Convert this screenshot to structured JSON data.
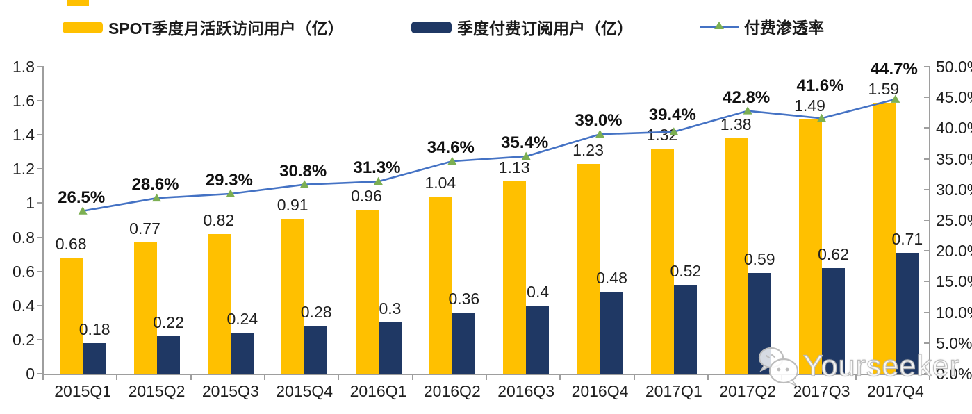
{
  "legend": {
    "items": [
      {
        "label": "SPOT季度月活跃访问用户（亿）",
        "color": "#FFC000",
        "kind": "bar"
      },
      {
        "label": "季度付费订阅用户（亿）",
        "color": "#1F3864",
        "kind": "bar"
      },
      {
        "label": "付费渗透率",
        "color": "#4472C4",
        "marker_color": "#7CAF52",
        "kind": "line"
      }
    ]
  },
  "chart_data": {
    "type": "bar+line combo",
    "categories": [
      "2015Q1",
      "2015Q2",
      "2015Q3",
      "2015Q4",
      "2016Q1",
      "2016Q2",
      "2016Q3",
      "2016Q4",
      "2017Q1",
      "2017Q2",
      "2017Q3",
      "2017Q4"
    ],
    "series": [
      {
        "name": "SPOT季度月活跃访问用户（亿）",
        "type": "bar",
        "axis": "left",
        "color": "#FFC000",
        "values": [
          0.68,
          0.77,
          0.82,
          0.91,
          0.96,
          1.04,
          1.13,
          1.23,
          1.32,
          1.38,
          1.49,
          1.59
        ],
        "labels": [
          "0.68",
          "0.77",
          "0.82",
          "0.91",
          "0.96",
          "1.04",
          "1.13",
          "1.23",
          "1.32",
          "1.38",
          "1.49",
          "1.59"
        ]
      },
      {
        "name": "季度付费订阅用户（亿）",
        "type": "bar",
        "axis": "left",
        "color": "#1F3864",
        "values": [
          0.18,
          0.22,
          0.24,
          0.28,
          0.3,
          0.36,
          0.4,
          0.48,
          0.52,
          0.59,
          0.62,
          0.71
        ],
        "labels": [
          "0.18",
          "0.22",
          "0.24",
          "0.28",
          "0.3",
          "0.36",
          "0.4",
          "0.48",
          "0.52",
          "0.59",
          "0.62",
          "0.71"
        ]
      },
      {
        "name": "付费渗透率",
        "type": "line",
        "axis": "right",
        "color": "#4472C4",
        "marker": "triangle",
        "marker_color": "#7CAF52",
        "values": [
          26.5,
          28.6,
          29.3,
          30.8,
          31.3,
          34.6,
          35.4,
          39.0,
          39.4,
          42.8,
          41.6,
          44.7
        ],
        "labels": [
          "26.5%",
          "28.6%",
          "29.3%",
          "30.8%",
          "31.3%",
          "34.6%",
          "35.4%",
          "39.0%",
          "39.4%",
          "42.8%",
          "41.6%",
          "44.7%"
        ]
      }
    ],
    "left_axis": {
      "min": 0,
      "max": 1.8,
      "step": 0.2,
      "tick_labels": [
        "0",
        "0.2",
        "0.4",
        "0.6",
        "0.8",
        "1",
        "1.2",
        "1.4",
        "1.6",
        "1.8"
      ]
    },
    "right_axis": {
      "min": 0,
      "max": 50,
      "step": 5,
      "tick_labels": [
        "0.0%",
        "5.0%",
        "10.0%",
        "15.0%",
        "20.0%",
        "25.0%",
        "30.0%",
        "35.0%",
        "40.0%",
        "45.0%",
        "50.0%"
      ]
    },
    "grid": false,
    "legend_position": "top"
  },
  "watermark": {
    "text": "Yourseeker",
    "icon": "wechat-icon"
  }
}
